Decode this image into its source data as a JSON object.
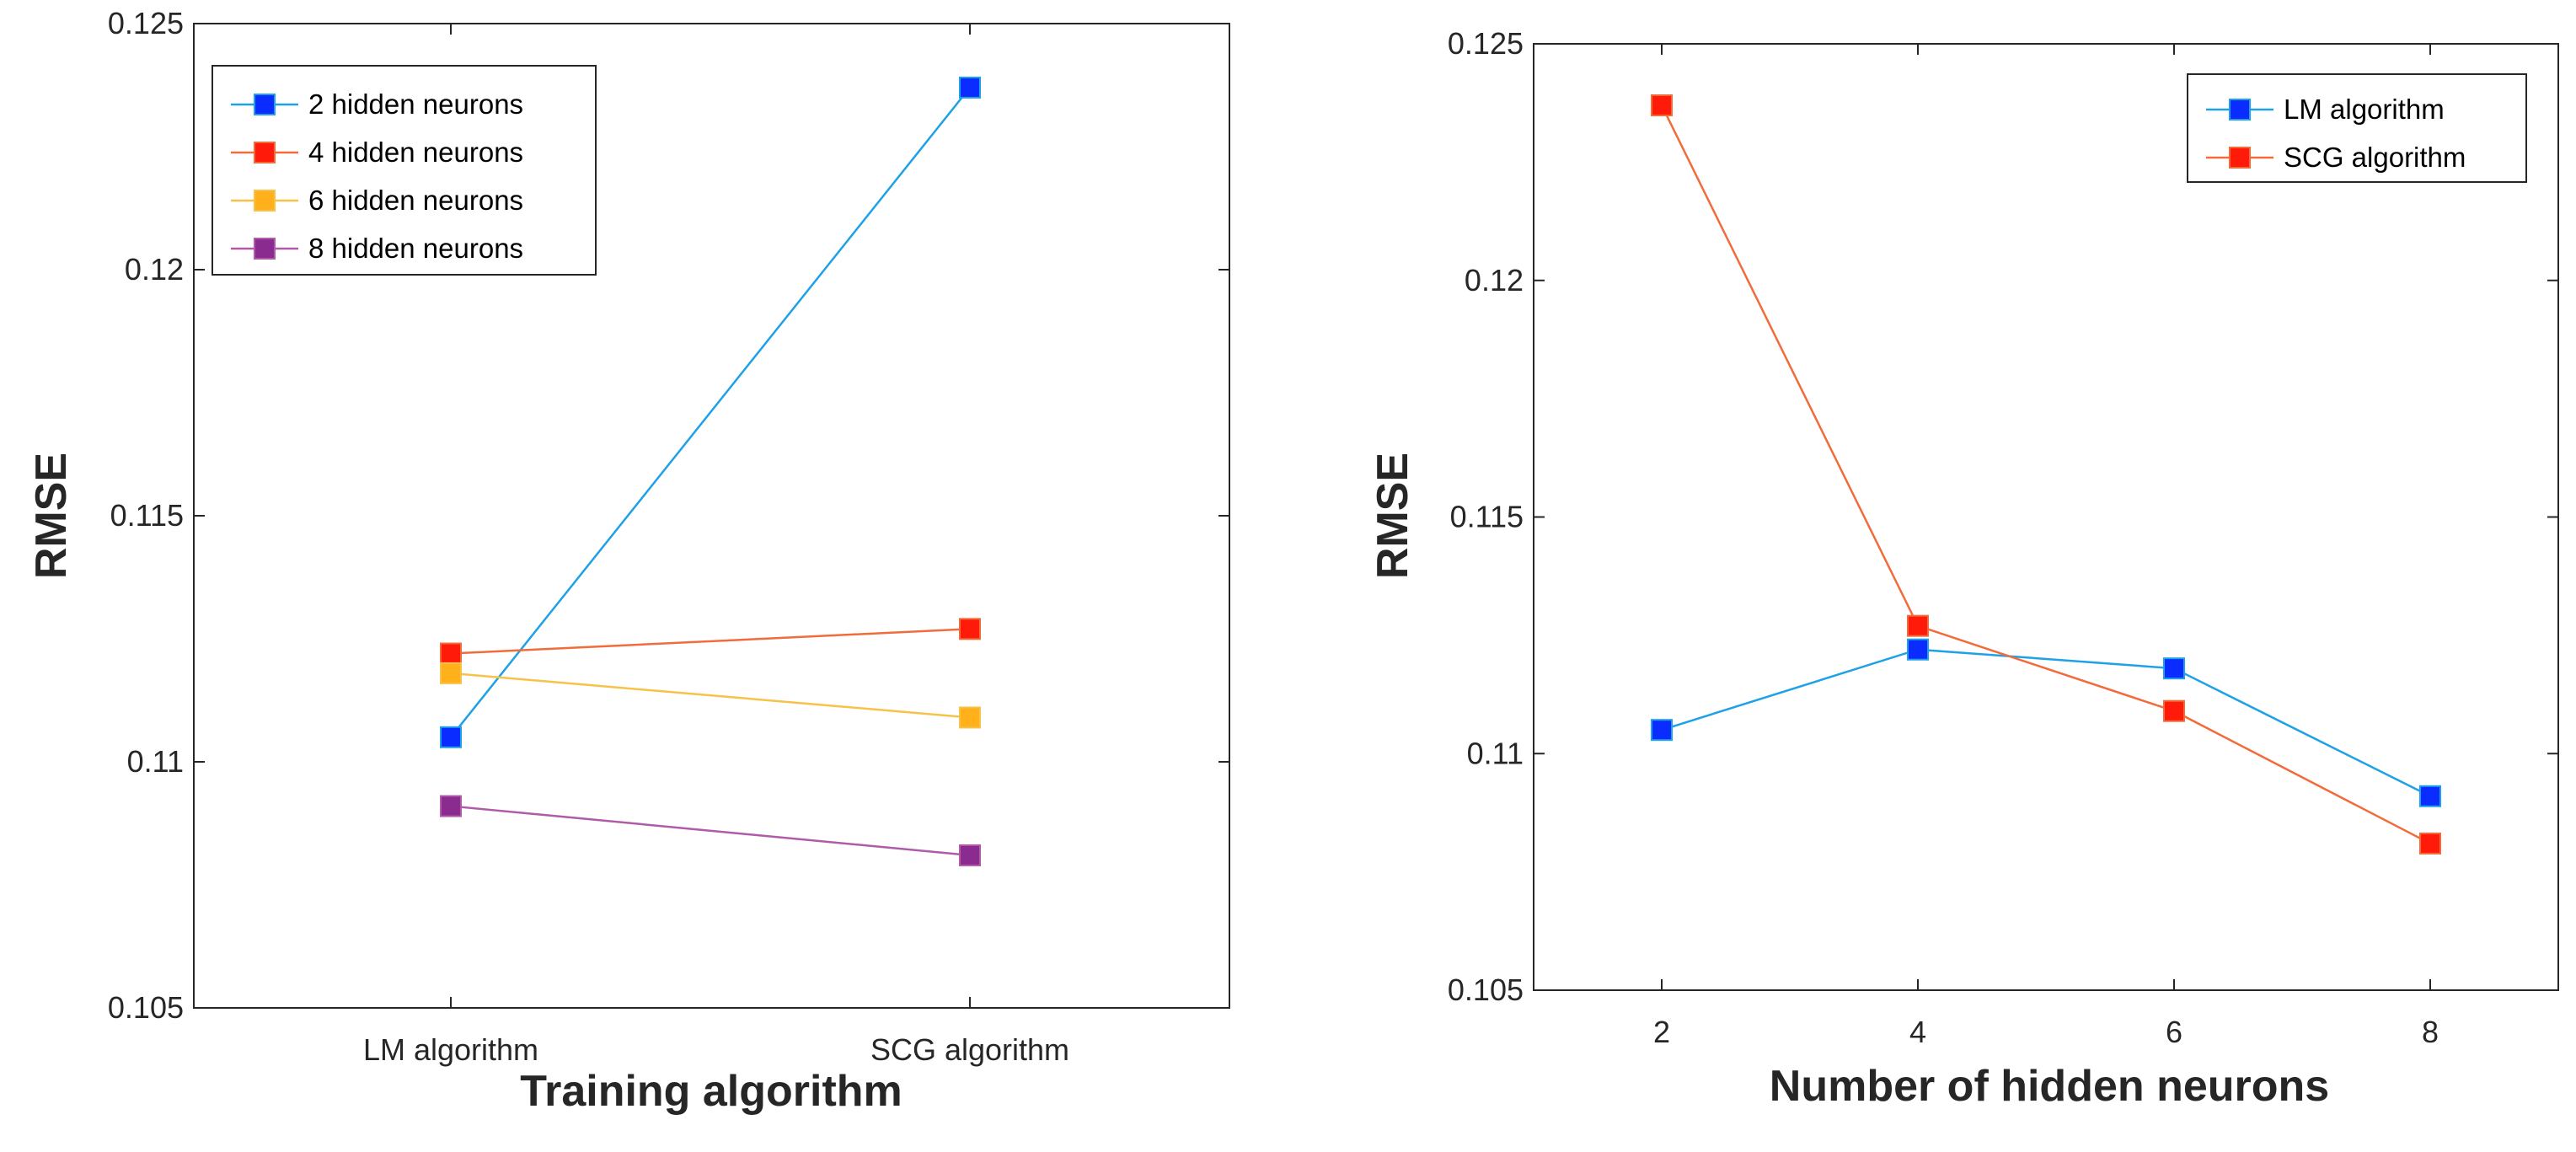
{
  "chart_data": [
    {
      "type": "line",
      "title": "",
      "xlabel": "Training algorithm",
      "ylabel": "RMSE",
      "categories": [
        "LM algorithm",
        "SCG algorithm"
      ],
      "ylim": [
        0.105,
        0.125
      ],
      "yticks": [
        0.105,
        0.11,
        0.115,
        0.12,
        0.125
      ],
      "ytick_labels": [
        "0.105",
        "0.11",
        "0.115",
        "0.12",
        "0.125"
      ],
      "grid": false,
      "legend_position": "top-left",
      "series": [
        {
          "name": "2 hidden neurons",
          "line_color": "#1ea1e6",
          "marker_color": "#0a2cff",
          "values": [
            0.1105,
            0.1237
          ]
        },
        {
          "name": "4 hidden neurons",
          "line_color": "#f26b3a",
          "marker_color": "#ff1a0a",
          "values": [
            0.1122,
            0.1127
          ]
        },
        {
          "name": "6 hidden neurons",
          "line_color": "#f7c24a",
          "marker_color": "#ffb01a",
          "values": [
            0.1118,
            0.1109
          ]
        },
        {
          "name": "8 hidden neurons",
          "line_color": "#b05aa8",
          "marker_color": "#8a2b8f",
          "values": [
            0.1091,
            0.1081
          ]
        }
      ]
    },
    {
      "type": "line",
      "title": "",
      "xlabel": "Number of hidden neurons",
      "ylabel": "RMSE",
      "x": [
        2,
        4,
        6,
        8
      ],
      "xlim": [
        1,
        9
      ],
      "xticks": [
        2,
        4,
        6,
        8
      ],
      "xtick_labels": [
        "2",
        "4",
        "6",
        "8"
      ],
      "ylim": [
        0.105,
        0.125
      ],
      "yticks": [
        0.105,
        0.11,
        0.115,
        0.12,
        0.125
      ],
      "ytick_labels": [
        "0.105",
        "0.11",
        "0.115",
        "0.12",
        "0.125"
      ],
      "grid": false,
      "legend_position": "top-right",
      "series": [
        {
          "name": "LM algorithm",
          "line_color": "#1ea1e6",
          "marker_color": "#0a2cff",
          "values": [
            0.1105,
            0.1122,
            0.1118,
            0.1091
          ]
        },
        {
          "name": "SCG algorithm",
          "line_color": "#f26b3a",
          "marker_color": "#ff1a0a",
          "values": [
            0.1237,
            0.1127,
            0.1109,
            0.1081
          ]
        }
      ]
    }
  ]
}
